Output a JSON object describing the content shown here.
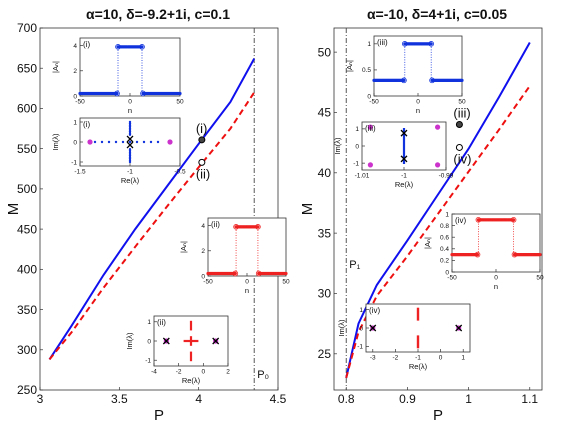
{
  "figure": {
    "left_title": "α=10, δ=-9.2+1i, c=0.1",
    "right_title": "α=-10, δ=4+1i, c=0.05",
    "colors": {
      "solid": "#1010ee",
      "dashed": "#ee1010",
      "pink": "#cc33cc",
      "red": "#ee2222",
      "blue": "#1133dd",
      "black": "#000000"
    }
  },
  "chart_data": [
    {
      "type": "line",
      "panel": "left",
      "title": "α=10, δ=-9.2+1i, c=0.1",
      "xlabel": "P",
      "ylabel": "M",
      "xlim": [
        3,
        4.5
      ],
      "ylim": [
        250,
        700
      ],
      "xticks": [
        "3",
        "3.5",
        "4",
        "4.5"
      ],
      "yticks": [
        "250",
        "300",
        "350",
        "400",
        "450",
        "500",
        "550",
        "600",
        "650",
        "700"
      ],
      "series": [
        {
          "style": "solid",
          "x": [
            3.06,
            3.2,
            3.4,
            3.6,
            3.8,
            4.0,
            4.2,
            4.35
          ],
          "y": [
            288,
            330,
            393,
            450,
            503,
            556,
            608,
            662
          ]
        },
        {
          "style": "dashed",
          "x": [
            3.06,
            3.2,
            3.4,
            3.6,
            3.8,
            4.0,
            4.2,
            4.35
          ],
          "y": [
            288,
            322,
            377,
            428,
            478,
            527,
            575,
            620
          ]
        }
      ],
      "markers": [
        {
          "label": "(i)",
          "x": 4.02,
          "y": 561
        },
        {
          "label": "(ii)",
          "x": 4.02,
          "y": 533
        }
      ],
      "vline": {
        "x": 4.35,
        "label": "P₀"
      }
    },
    {
      "type": "line",
      "panel": "right",
      "title": "α=-10, δ=4+1i, c=0.05",
      "xlabel": "P",
      "ylabel": "M",
      "xlim": [
        0.78,
        1.12
      ],
      "ylim": [
        22,
        52
      ],
      "xticks": [
        "0.8",
        "0.9",
        "1",
        "1.1"
      ],
      "yticks": [
        "25",
        "30",
        "35",
        "40",
        "45",
        "50"
      ],
      "series": [
        {
          "style": "solid",
          "x": [
            0.8,
            0.82,
            0.85,
            0.9,
            0.95,
            1.0,
            1.05,
            1.1
          ],
          "y": [
            23,
            27.5,
            30.7,
            34.4,
            38.2,
            42.0,
            46.3,
            50.8
          ]
        },
        {
          "style": "dashed",
          "x": [
            0.8,
            0.82,
            0.85,
            0.9,
            0.95,
            1.0,
            1.05,
            1.1
          ],
          "y": [
            23,
            26.8,
            29.8,
            33.1,
            36.6,
            40.1,
            43.6,
            47.2
          ]
        }
      ],
      "markers": [
        {
          "label": "(iii)",
          "x": 0.985,
          "y": 44.0
        },
        {
          "label": "(iv)",
          "x": 0.985,
          "y": 42.1
        }
      ],
      "vline": {
        "x": 0.8,
        "label": "P₁"
      }
    },
    {
      "type": "scatter",
      "panel": "inset-i-profile",
      "title": "(i)",
      "xlabel": "n",
      "ylabel": "|Aₙ|",
      "xlim": [
        -50,
        50
      ],
      "ylim": [
        0,
        4.6
      ],
      "xticks": [
        "-50",
        "0",
        "50"
      ],
      "yticks": [
        "0",
        "2",
        "4"
      ],
      "profile": {
        "low": 0.2,
        "high": 3.9,
        "half_width": 12
      }
    },
    {
      "type": "scatter",
      "panel": "inset-i-spectrum",
      "title": "(i)",
      "xlabel": "Re(λ)",
      "ylabel": "Im(λ)",
      "xlim": [
        -1.5,
        -0.5
      ],
      "ylim": [
        -1.2,
        1.2
      ],
      "xticks": [
        "-1.5",
        "-1",
        "-0.5"
      ],
      "yticks": [
        "-1",
        "0",
        "1"
      ],
      "cross_points": [
        [
          -1.0,
          0.15
        ],
        [
          -1.0,
          -0.15
        ]
      ],
      "side_points": [
        [
          -1.4,
          0
        ],
        [
          -0.6,
          0
        ]
      ]
    },
    {
      "type": "scatter",
      "panel": "inset-ii-profile",
      "title": "(ii)",
      "xlabel": "n",
      "ylabel": "|Aₙ|",
      "xlim": [
        -50,
        50
      ],
      "ylim": [
        0,
        4.6
      ],
      "xticks": [
        "-50",
        "0",
        "50"
      ],
      "yticks": [
        "0",
        "2",
        "4"
      ],
      "profile": {
        "low": 0.2,
        "high": 3.9,
        "half_width": 14
      }
    },
    {
      "type": "scatter",
      "panel": "inset-ii-spectrum",
      "title": "(ii)",
      "xlabel": "Re(λ)",
      "ylabel": "Im(λ)",
      "xlim": [
        -4,
        2
      ],
      "ylim": [
        -1.3,
        1.3
      ],
      "xticks": [
        "-4",
        "-2",
        "0",
        "2"
      ],
      "yticks": [
        "-1",
        "0",
        "1"
      ],
      "cross_points": [
        [
          -3,
          0
        ],
        [
          1,
          0
        ]
      ],
      "side_points": [
        [
          -3,
          0
        ],
        [
          1,
          0
        ]
      ]
    },
    {
      "type": "scatter",
      "panel": "inset-iii-profile",
      "title": "(iii)",
      "xlabel": "n",
      "ylabel": "|Aₙ|",
      "xlim": [
        -50,
        50
      ],
      "ylim": [
        0,
        1.15
      ],
      "xticks": [
        "-50",
        "0",
        "50"
      ],
      "yticks": [
        "0",
        "0.5",
        "1"
      ],
      "profile": {
        "low": 0.3,
        "high": 1.0,
        "half_width": 15
      }
    },
    {
      "type": "scatter",
      "panel": "inset-iii-spectrum",
      "title": "(iii)",
      "xlabel": "Re(λ)",
      "ylabel": "Im(λ)",
      "xlim": [
        -1.01,
        -0.99
      ],
      "ylim": [
        -1.4,
        1.4
      ],
      "xticks": [
        "-1.01",
        "-1",
        "-0.99"
      ],
      "yticks": [
        "-1",
        "0",
        "1"
      ],
      "cross_points": [
        [
          -1.0,
          0.75
        ],
        [
          -1.0,
          -0.75
        ]
      ],
      "side_points": [
        [
          -1.008,
          1.1
        ],
        [
          -0.992,
          1.1
        ],
        [
          -1.008,
          -1.1
        ],
        [
          -0.992,
          -1.1
        ]
      ]
    },
    {
      "type": "scatter",
      "panel": "inset-iv-profile",
      "title": "(iv)",
      "xlabel": "n",
      "ylabel": "|Aₙ|",
      "xlim": [
        -50,
        50
      ],
      "ylim": [
        0,
        1.0
      ],
      "xticks": [
        "-50",
        "0",
        "50"
      ],
      "yticks": [
        "0",
        "0.2",
        "0.4",
        "0.6",
        "0.8",
        "1"
      ],
      "profile": {
        "low": 0.3,
        "high": 0.9,
        "half_width": 20
      }
    },
    {
      "type": "scatter",
      "panel": "inset-iv-spectrum",
      "title": "(iv)",
      "xlabel": "Re(λ)",
      "ylabel": "Im(λ)",
      "xlim": [
        -3.3,
        1.3
      ],
      "ylim": [
        -1.3,
        1.3
      ],
      "xticks": [
        "-3",
        "-2",
        "-1",
        "0",
        "1"
      ],
      "yticks": [
        "-1",
        "0",
        "1"
      ],
      "cross_points": [
        [
          -3,
          0
        ],
        [
          0.8,
          0
        ]
      ],
      "side_points": [
        [
          -3,
          0
        ],
        [
          0.8,
          0
        ]
      ]
    }
  ]
}
